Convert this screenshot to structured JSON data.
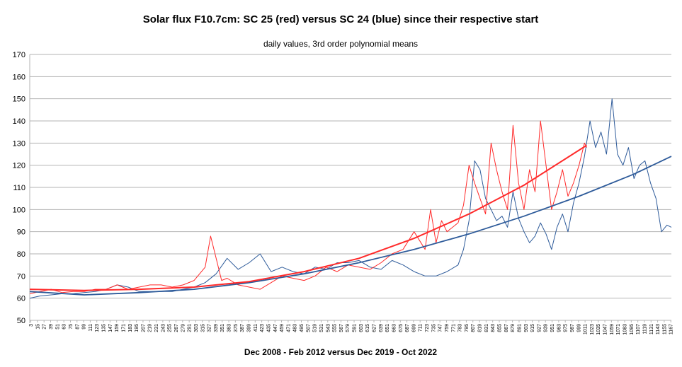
{
  "chart_data": {
    "type": "line",
    "title": "Solar flux F10.7cm: SC 25 (red) versus SC 24 (blue) since their respective start",
    "subtitle": "daily values, 3rd order polynomial means",
    "xlabel": "Dec 2008 - Feb 2012 versus Dec 2019 - Oct 2022",
    "ylabel": "",
    "xlim": [
      1,
      1168
    ],
    "ylim": [
      50,
      170
    ],
    "y_ticks": [
      50,
      60,
      70,
      80,
      90,
      100,
      110,
      120,
      130,
      140,
      150,
      160,
      170
    ],
    "x_tick_labels": [
      "3",
      "15",
      "27",
      "39",
      "51",
      "63",
      "75",
      "87",
      "99",
      "111",
      "123",
      "135",
      "147",
      "159",
      "171",
      "183",
      "195",
      "207",
      "219",
      "231",
      "243",
      "255",
      "267",
      "279",
      "291",
      "303",
      "315",
      "327",
      "339",
      "351",
      "363",
      "375",
      "387",
      "399",
      "411",
      "423",
      "435",
      "447",
      "459",
      "471",
      "483",
      "495",
      "507",
      "519",
      "531",
      "543",
      "555",
      "567",
      "579",
      "591",
      "603",
      "615",
      "627",
      "639",
      "651",
      "663",
      "675",
      "687",
      "699",
      "711",
      "723",
      "735",
      "747",
      "759",
      "771",
      "783",
      "795",
      "807",
      "819",
      "831",
      "843",
      "855",
      "867",
      "879",
      "891",
      "903",
      "915",
      "927",
      "939",
      "951",
      "963",
      "975",
      "987",
      "999",
      "1011",
      "1023",
      "1035",
      "1047",
      "1059",
      "1071",
      "1083",
      "1095",
      "1107",
      "1119",
      "1131",
      "1143",
      "1155",
      "1167"
    ],
    "grid": true,
    "legend": "none",
    "series": [
      {
        "color": "#2e5b9a",
        "values": [
          [
            1,
            60
          ],
          [
            20,
            61
          ],
          [
            40,
            61.5
          ],
          [
            60,
            62
          ],
          [
            80,
            62
          ],
          [
            100,
            62.5
          ],
          [
            120,
            63
          ],
          [
            140,
            64
          ],
          [
            160,
            66
          ],
          [
            180,
            65
          ],
          [
            200,
            63
          ],
          [
            220,
            63
          ],
          [
            240,
            63
          ],
          [
            260,
            63
          ],
          [
            280,
            64
          ],
          [
            300,
            65
          ],
          [
            320,
            67
          ],
          [
            340,
            71
          ],
          [
            360,
            78
          ],
          [
            380,
            73
          ],
          [
            400,
            76
          ],
          [
            420,
            80
          ],
          [
            440,
            72
          ],
          [
            460,
            74
          ],
          [
            480,
            72
          ],
          [
            500,
            71
          ],
          [
            520,
            74
          ],
          [
            540,
            73
          ],
          [
            560,
            76
          ],
          [
            580,
            76
          ],
          [
            600,
            77
          ],
          [
            620,
            74
          ],
          [
            640,
            73
          ],
          [
            660,
            77
          ],
          [
            680,
            75
          ],
          [
            700,
            72
          ],
          [
            720,
            70
          ],
          [
            740,
            70
          ],
          [
            760,
            72
          ],
          [
            780,
            75
          ],
          [
            790,
            82
          ],
          [
            800,
            95
          ],
          [
            810,
            122
          ],
          [
            820,
            118
          ],
          [
            830,
            105
          ],
          [
            840,
            100
          ],
          [
            850,
            95
          ],
          [
            860,
            97
          ],
          [
            870,
            92
          ],
          [
            880,
            108
          ],
          [
            890,
            96
          ],
          [
            900,
            90
          ],
          [
            910,
            85
          ],
          [
            920,
            88
          ],
          [
            930,
            94
          ],
          [
            940,
            89
          ],
          [
            950,
            82
          ],
          [
            960,
            92
          ],
          [
            970,
            98
          ],
          [
            980,
            90
          ],
          [
            990,
            103
          ],
          [
            1000,
            112
          ],
          [
            1010,
            124
          ],
          [
            1020,
            140
          ],
          [
            1030,
            128
          ],
          [
            1040,
            135
          ],
          [
            1050,
            125
          ],
          [
            1060,
            150
          ],
          [
            1070,
            125
          ],
          [
            1080,
            120
          ],
          [
            1090,
            128
          ],
          [
            1100,
            114
          ],
          [
            1110,
            120
          ],
          [
            1120,
            122
          ],
          [
            1130,
            112
          ],
          [
            1140,
            105
          ],
          [
            1150,
            90
          ],
          [
            1160,
            93
          ],
          [
            1168,
            92
          ]
        ]
      },
      {
        "color": "#ff2a2a",
        "values": [
          [
            1,
            62
          ],
          [
            20,
            63
          ],
          [
            40,
            64
          ],
          [
            60,
            62.5
          ],
          [
            80,
            63
          ],
          [
            100,
            63
          ],
          [
            120,
            64
          ],
          [
            140,
            64
          ],
          [
            160,
            66
          ],
          [
            180,
            64
          ],
          [
            200,
            65
          ],
          [
            220,
            66
          ],
          [
            240,
            66
          ],
          [
            260,
            65
          ],
          [
            280,
            66
          ],
          [
            300,
            68
          ],
          [
            320,
            74
          ],
          [
            330,
            88
          ],
          [
            340,
            78
          ],
          [
            350,
            68
          ],
          [
            360,
            69
          ],
          [
            380,
            66
          ],
          [
            400,
            65
          ],
          [
            420,
            64
          ],
          [
            440,
            67
          ],
          [
            460,
            70
          ],
          [
            480,
            69
          ],
          [
            500,
            68
          ],
          [
            520,
            70
          ],
          [
            540,
            74
          ],
          [
            560,
            72
          ],
          [
            580,
            75
          ],
          [
            600,
            74
          ],
          [
            620,
            73
          ],
          [
            640,
            76
          ],
          [
            660,
            80
          ],
          [
            680,
            82
          ],
          [
            700,
            90
          ],
          [
            720,
            82
          ],
          [
            730,
            100
          ],
          [
            740,
            85
          ],
          [
            750,
            95
          ],
          [
            760,
            90
          ],
          [
            780,
            94
          ],
          [
            790,
            102
          ],
          [
            800,
            120
          ],
          [
            810,
            112
          ],
          [
            820,
            105
          ],
          [
            830,
            98
          ],
          [
            840,
            130
          ],
          [
            850,
            118
          ],
          [
            860,
            108
          ],
          [
            870,
            100
          ],
          [
            880,
            138
          ],
          [
            890,
            112
          ],
          [
            900,
            100
          ],
          [
            910,
            118
          ],
          [
            920,
            108
          ],
          [
            930,
            140
          ],
          [
            940,
            120
          ],
          [
            950,
            100
          ],
          [
            960,
            108
          ],
          [
            970,
            118
          ],
          [
            980,
            106
          ],
          [
            990,
            112
          ],
          [
            1000,
            120
          ],
          [
            1010,
            130
          ],
          [
            1014,
            128
          ]
        ]
      },
      {
        "color": "#2e5b9a",
        "values": [
          [
            1,
            63
          ],
          [
            100,
            61.5
          ],
          [
            200,
            62.5
          ],
          [
            300,
            64
          ],
          [
            400,
            67
          ],
          [
            500,
            71
          ],
          [
            600,
            76
          ],
          [
            700,
            82
          ],
          [
            800,
            89
          ],
          [
            900,
            97
          ],
          [
            1000,
            106
          ],
          [
            1100,
            116
          ],
          [
            1168,
            124
          ]
        ]
      },
      {
        "color": "#ff2a2a",
        "values": [
          [
            1,
            64
          ],
          [
            100,
            63.5
          ],
          [
            200,
            64
          ],
          [
            300,
            65
          ],
          [
            400,
            67.5
          ],
          [
            500,
            72
          ],
          [
            600,
            78
          ],
          [
            700,
            87
          ],
          [
            800,
            98
          ],
          [
            900,
            111
          ],
          [
            1014,
            129
          ]
        ]
      }
    ]
  }
}
